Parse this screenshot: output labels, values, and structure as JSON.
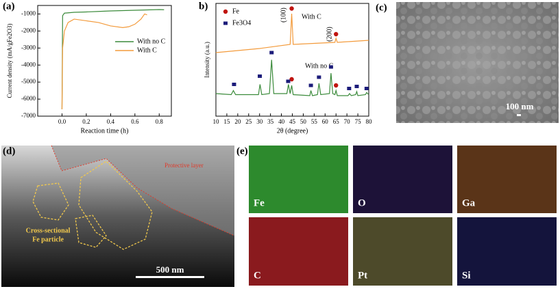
{
  "chart_data": [
    {
      "type": "line",
      "label": "(a)",
      "xlabel": "Reaction time (h)",
      "ylabel": "Current density (mA/gFe2O3)",
      "xlim": [
        -0.2,
        0.9
      ],
      "xticks": [
        {
          "value": 0,
          "label": "0.0"
        },
        {
          "value": 0.2,
          "label": "0.2"
        },
        {
          "value": 0.4,
          "label": "0.4"
        },
        {
          "value": 0.6,
          "label": "0.6"
        },
        {
          "value": 0.8,
          "label": "0.8"
        }
      ],
      "ylim": [
        -7000,
        -500
      ],
      "yticks": [
        -7000,
        -6000,
        -5000,
        -4000,
        -3000,
        -2000,
        -1000
      ],
      "series": [
        {
          "name": "With no C",
          "color": "#3a8a3a",
          "x": [
            0,
            0.005,
            0.02,
            0.1,
            0.2,
            0.3,
            0.4,
            0.5,
            0.6,
            0.7,
            0.8,
            0.84
          ],
          "values": [
            -6600,
            -1100,
            -950,
            -900,
            -880,
            -850,
            -820,
            -800,
            -780,
            -760,
            -740,
            -750
          ]
        },
        {
          "name": "With C",
          "color": "#f39a3a",
          "x": [
            0,
            0.005,
            0.02,
            0.05,
            0.1,
            0.2,
            0.3,
            0.4,
            0.5,
            0.55,
            0.6,
            0.65,
            0.68,
            0.7
          ],
          "values": [
            -6600,
            -3000,
            -2000,
            -1500,
            -1300,
            -1400,
            -1500,
            -1700,
            -1800,
            -1750,
            -1600,
            -1300,
            -1000,
            -1050
          ]
        }
      ]
    },
    {
      "type": "line",
      "label": "b)",
      "xlabel": "2θ (degree)",
      "ylabel": "Intensity (a.u.)",
      "xlim": [
        10,
        80
      ],
      "xticks": [
        10,
        15,
        20,
        25,
        30,
        35,
        40,
        45,
        50,
        55,
        60,
        65,
        70,
        75,
        80
      ],
      "ylim": [
        0,
        110
      ],
      "series": [
        {
          "name": "With C",
          "color": "#f39a3a",
          "x": [
            10,
            30,
            44,
            44.7,
            45.4,
            64.5,
            65,
            65.6,
            80
          ],
          "values": [
            62,
            66,
            70,
            100,
            70,
            72,
            76,
            72,
            74
          ]
        },
        {
          "name": "With no C",
          "color": "#3a8a3a",
          "x": [
            10,
            17,
            18,
            19,
            29.5,
            30.2,
            31,
            34.5,
            35.5,
            36.5,
            42.5,
            43.2,
            44,
            44.7,
            45.4,
            53,
            53.5,
            54.2,
            56.5,
            57.2,
            58,
            62,
            62.7,
            63.5,
            64.5,
            65,
            65.6,
            70.5,
            71.2,
            72,
            74,
            74.5,
            75,
            78.5,
            79,
            80
          ],
          "values": [
            22,
            21,
            25,
            21,
            21,
            31,
            21,
            22,
            55,
            22,
            22,
            31,
            22,
            30,
            21,
            20,
            25,
            20,
            21,
            32,
            21,
            22,
            42,
            22,
            21,
            25,
            20,
            20,
            22,
            20,
            21,
            24,
            20,
            21,
            23,
            21
          ]
        }
      ],
      "markers": [
        {
          "name": "Fe",
          "color": "#c0140f",
          "shape": "circle",
          "x": [
            44.7,
            65,
            44.7,
            65
          ],
          "values": [
            105,
            80,
            36,
            30
          ]
        },
        {
          "name": "Fe3O4",
          "color": "#1c1c7a",
          "shape": "square",
          "x": [
            18.3,
            30.1,
            35.5,
            43.1,
            53.5,
            57.2,
            62.7,
            71,
            74.5,
            79
          ],
          "values": [
            31,
            39,
            62,
            34,
            30,
            38,
            48,
            27,
            29,
            27
          ]
        }
      ],
      "annotations": [
        "(100)",
        "(200)",
        "With C",
        "With no C"
      ]
    }
  ],
  "panels": {
    "c": {
      "label": "(c)",
      "scale": "100 nm"
    },
    "d": {
      "label": "(d)",
      "scale": "500 nm",
      "annotations": [
        "Protective layer",
        "Cross-sectional",
        "Fe particle"
      ]
    },
    "e": {
      "label": "(e)",
      "maps": [
        "Fe",
        "O",
        "Ga",
        "C",
        "Pt",
        "Si"
      ]
    }
  }
}
